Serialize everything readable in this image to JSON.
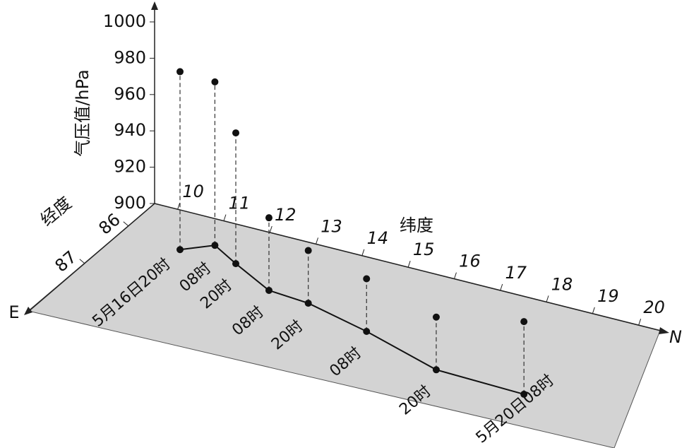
{
  "pressure_axis": {
    "label": "气压值/hPa",
    "ticks": [
      900,
      920,
      940,
      960,
      980,
      1000
    ]
  },
  "longitude_axis": {
    "label": "经度",
    "ticks": [
      86,
      87
    ],
    "end": "E"
  },
  "latitude_axis": {
    "label": "纬度",
    "ticks": [
      10,
      11,
      12,
      13,
      14,
      15,
      16,
      17,
      18,
      19,
      20
    ],
    "end": "N"
  },
  "points": [
    {
      "label": "5月16日20时",
      "lat": 10.83,
      "lon": 86.22,
      "pressure": 998
    },
    {
      "label": "08时",
      "lat": 11.33,
      "lon": 85.95,
      "pressure": 990
    },
    {
      "label": "20时",
      "lat": 12.04,
      "lon": 86.22,
      "pressure": 972
    },
    {
      "label": "08时",
      "lat": 13.12,
      "lon": 86.6,
      "pressure": 940
    },
    {
      "label": "20时",
      "lat": 14.03,
      "lon": 86.66,
      "pressure": 929
    },
    {
      "label": "08时",
      "lat": 15.56,
      "lon": 86.94,
      "pressure": 929
    },
    {
      "label": "20时",
      "lat": 17.48,
      "lon": 87.37,
      "pressure": 929
    },
    {
      "label": "5月20日08时",
      "lat": 19.43,
      "lon": 87.42,
      "pressure": 940
    }
  ]
}
